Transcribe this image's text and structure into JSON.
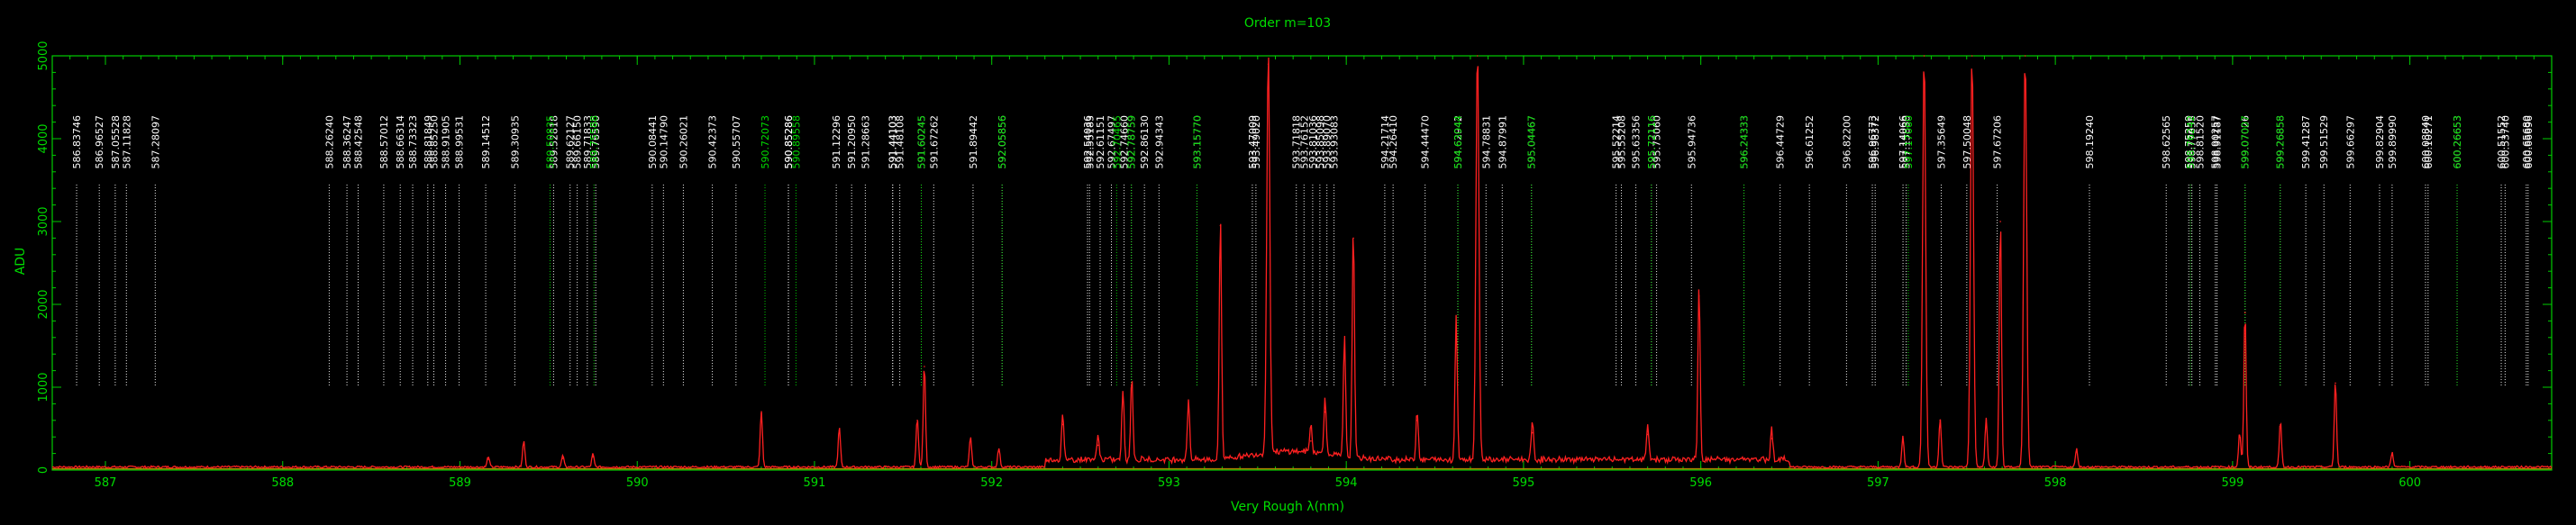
{
  "chart_data": {
    "type": "line",
    "title": "Order m=103",
    "xlabel": "Very Rough λ(nm)",
    "ylabel": "ADU",
    "xlim": [
      586.7,
      600.8
    ],
    "ylim": [
      0,
      5000
    ],
    "x_ticks": [
      587,
      588,
      589,
      590,
      591,
      592,
      593,
      594,
      595,
      596,
      597,
      598,
      599,
      600
    ],
    "x_tick_labels": [
      "587",
      "588",
      "589",
      "590",
      "591",
      "592",
      "593",
      "594",
      "595",
      "596",
      "597",
      "598",
      "599",
      "600"
    ],
    "y_ticks": [
      0,
      1000,
      2000,
      3000,
      4000,
      5000
    ],
    "y_tick_labels": [
      "0",
      "1000",
      "2000",
      "3000",
      "4000",
      "5000"
    ],
    "colors": {
      "spectrum": "#ff2020",
      "axis": "#00cc00",
      "white_lines": "#ffffff",
      "green_lines": "#00dd00",
      "baseline": "#b08000"
    },
    "line_labels_white": [
      "586.83746",
      "586.96527",
      "587.05528",
      "587.11828",
      "587.28097",
      "588.26240",
      "588.36247",
      "588.42548",
      "588.57012",
      "588.66314",
      "588.73323",
      "588.81849",
      "588.85250",
      "588.91905",
      "588.99531",
      "589.14512",
      "589.30935",
      "589.52818",
      "589.62127",
      "589.66150",
      "589.71833",
      "589.76590",
      "590.08441",
      "590.14790",
      "590.26021",
      "590.42373",
      "590.55707",
      "590.85286",
      "590.85286",
      "591.12296",
      "591.20950",
      "591.28663",
      "591.44103",
      "591.44103",
      "591.48108",
      "591.60245",
      "591.67262",
      "591.89442",
      "592.05856",
      "592.54036",
      "592.55183",
      "592.61151",
      "592.67497",
      "592.74660",
      "592.78759",
      "592.86130",
      "592.94343",
      "593.15770",
      "593.47009",
      "593.49020",
      "593.71818",
      "593.76152",
      "593.81036",
      "593.85098",
      "593.89070",
      "593.93083",
      "594.21714",
      "594.26410",
      "594.44470",
      "594.62942",
      "594.78831",
      "594.87991",
      "595.04467",
      "595.52214",
      "595.55208",
      "595.63356",
      "595.72116",
      "595.75060",
      "595.94736",
      "596.24333",
      "596.44729",
      "596.61252",
      "596.82200",
      "596.96773",
      "596.98372",
      "597.14066",
      "597.15880",
      "597.35649",
      "597.50048",
      "597.67206",
      "598.19240",
      "598.62565",
      "598.75259",
      "598.77035",
      "598.81520",
      "598.90257",
      "598.91187",
      "599.07026",
      "599.26858",
      "599.41287",
      "599.51529",
      "599.66297",
      "599.82904",
      "599.89990",
      "600.08840",
      "600.10271",
      "600.26653",
      "600.51552",
      "600.53740",
      "600.65680",
      "600.66696"
    ],
    "line_labels_green": [
      "589.50835",
      "589.75588",
      "590.72073",
      "590.89558",
      "591.60245",
      "592.05856",
      "592.70465",
      "592.78759",
      "593.15770",
      "594.63044",
      "595.04467",
      "595.72116",
      "596.24333",
      "597.17060",
      "598.76242",
      "599.07007",
      "599.26858",
      "600.26653"
    ],
    "spectrum_peaks": [
      {
        "x": 589.16,
        "y": 130
      },
      {
        "x": 589.36,
        "y": 320
      },
      {
        "x": 589.58,
        "y": 140
      },
      {
        "x": 589.75,
        "y": 160
      },
      {
        "x": 590.7,
        "y": 680
      },
      {
        "x": 591.14,
        "y": 480
      },
      {
        "x": 591.58,
        "y": 600
      },
      {
        "x": 591.62,
        "y": 1250
      },
      {
        "x": 591.88,
        "y": 360
      },
      {
        "x": 592.04,
        "y": 230
      },
      {
        "x": 592.4,
        "y": 550
      },
      {
        "x": 592.6,
        "y": 300
      },
      {
        "x": 592.74,
        "y": 850
      },
      {
        "x": 592.79,
        "y": 1000
      },
      {
        "x": 593.11,
        "y": 750
      },
      {
        "x": 593.29,
        "y": 2950
      },
      {
        "x": 593.56,
        "y": 4900
      },
      {
        "x": 593.8,
        "y": 350
      },
      {
        "x": 593.88,
        "y": 700
      },
      {
        "x": 593.99,
        "y": 1450
      },
      {
        "x": 594.04,
        "y": 2800
      },
      {
        "x": 594.4,
        "y": 600
      },
      {
        "x": 594.62,
        "y": 1750
      },
      {
        "x": 594.74,
        "y": 5000
      },
      {
        "x": 595.05,
        "y": 450
      },
      {
        "x": 595.7,
        "y": 430
      },
      {
        "x": 595.99,
        "y": 2100
      },
      {
        "x": 596.4,
        "y": 380
      },
      {
        "x": 597.14,
        "y": 380
      },
      {
        "x": 597.26,
        "y": 5000
      },
      {
        "x": 597.35,
        "y": 600
      },
      {
        "x": 597.53,
        "y": 5000
      },
      {
        "x": 597.61,
        "y": 600
      },
      {
        "x": 597.69,
        "y": 3000
      },
      {
        "x": 597.83,
        "y": 5000
      },
      {
        "x": 598.12,
        "y": 220
      },
      {
        "x": 599.04,
        "y": 420
      },
      {
        "x": 599.07,
        "y": 1900
      },
      {
        "x": 599.27,
        "y": 550
      },
      {
        "x": 599.58,
        "y": 1050
      },
      {
        "x": 599.9,
        "y": 180
      }
    ]
  }
}
